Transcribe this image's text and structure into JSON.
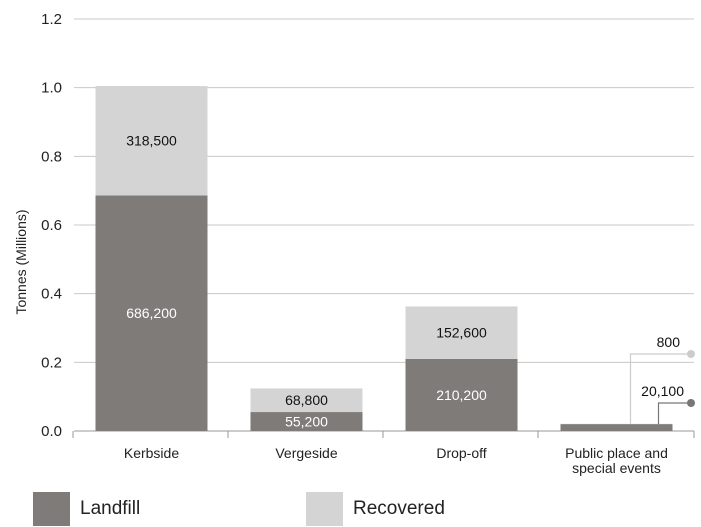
{
  "chart_data": {
    "type": "bar",
    "stacked": true,
    "categories": [
      "Kerbside",
      "Vergeside",
      "Drop-off",
      "Public place and special events"
    ],
    "category_lines": [
      [
        "Kerbside"
      ],
      [
        "Vergeside"
      ],
      [
        "Drop-off"
      ],
      [
        "Public place and",
        "special events"
      ]
    ],
    "series": [
      {
        "name": "Landfill",
        "values": [
          0.6862,
          0.0552,
          0.2102,
          0.0201
        ],
        "labels": [
          "686,200",
          "55,200",
          "210,200",
          "20,100"
        ],
        "color": "#7e7b78"
      },
      {
        "name": "Recovered",
        "values": [
          0.3185,
          0.0688,
          0.1526,
          0.0008
        ],
        "labels": [
          "318,500",
          "68,800",
          "152,600",
          "800"
        ],
        "color": "#d4d4d4"
      }
    ],
    "ylabel": "Tonnes (Millions)",
    "ylim": [
      0,
      1.2
    ],
    "yticks": [
      "0.0",
      "0.2",
      "0.4",
      "0.6",
      "0.8",
      "1.0",
      "1.2"
    ],
    "grid": true,
    "legend_position": "bottom",
    "callout_color_landfill": "#777777",
    "callout_color_recovered": "#cccccc"
  }
}
